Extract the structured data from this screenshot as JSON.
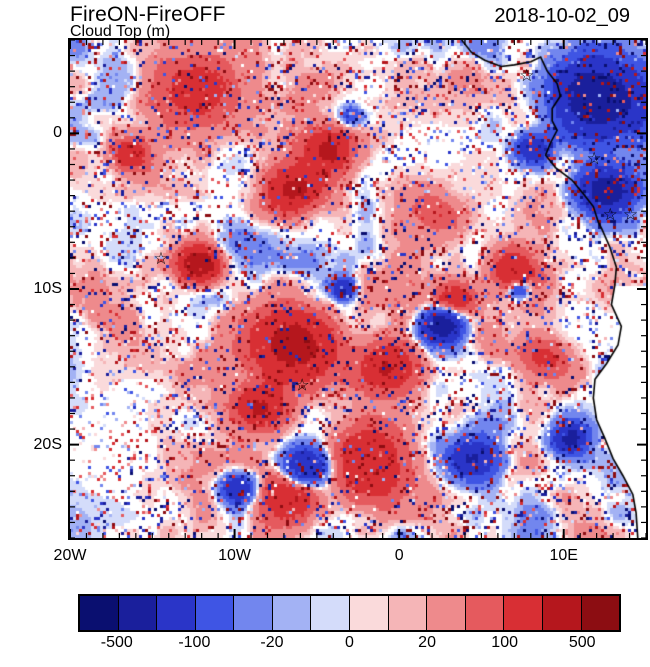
{
  "header": {
    "title": "FireON-FireOFF",
    "subtitle": "Cloud Top (m)",
    "datetime": "2018-10-02_09"
  },
  "chart_data": {
    "type": "heatmap",
    "title": "FireON-FireOFF",
    "subtitle": "Cloud Top (m)",
    "timestamp": "2018-10-02_09",
    "description": "Pixelated difference field (FireON minus FireOFF cloud top height, m) over the southeast Atlantic and southwestern Africa with coastline overlay",
    "x_axis": {
      "range_lon": [
        -20,
        15
      ],
      "minor_step_deg": 1,
      "ticks": [
        {
          "lon": -20,
          "label": "20W"
        },
        {
          "lon": -10,
          "label": "10W"
        },
        {
          "lon": 0,
          "label": "0"
        },
        {
          "lon": 10,
          "label": "10E"
        }
      ]
    },
    "y_axis": {
      "range_lat": [
        6,
        -26
      ],
      "minor_step_deg": 1,
      "ticks": [
        {
          "lat": 0,
          "label": "0"
        },
        {
          "lat": -10,
          "label": "10S"
        },
        {
          "lat": -20,
          "label": "20S"
        }
      ]
    },
    "colorbar": {
      "levels": [
        -500,
        -200,
        -100,
        -50,
        -20,
        -10,
        0,
        10,
        20,
        50,
        100,
        200,
        500
      ],
      "colors": [
        "#0a0f70",
        "#1a1f9c",
        "#2a35c8",
        "#3f55e4",
        "#7286ee",
        "#a3b2f4",
        "#d4dcfa",
        "#fadadb",
        "#f5b5b7",
        "#ee8a8c",
        "#e55a5e",
        "#d82f34",
        "#b5171d",
        "#8c0d12"
      ],
      "labeled": [
        {
          "index": 1,
          "text": "-500"
        },
        {
          "index": 3,
          "text": "-100"
        },
        {
          "index": 5,
          "text": "-20"
        },
        {
          "index": 7,
          "text": "0"
        },
        {
          "index": 9,
          "text": "20"
        },
        {
          "index": 11,
          "text": "100"
        },
        {
          "index": 13,
          "text": "500"
        }
      ]
    },
    "markers": {
      "symbol": "☆",
      "positions": [
        {
          "fx": 0.158,
          "fy": 0.438
        },
        {
          "fx": 0.403,
          "fy": 0.692
        },
        {
          "fx": 0.793,
          "fy": 0.07
        },
        {
          "fx": 0.91,
          "fy": 0.237
        },
        {
          "fx": 0.938,
          "fy": 0.349
        },
        {
          "fx": 0.973,
          "fy": 0.349
        }
      ]
    },
    "map": {
      "coastline_color": "#000000",
      "background": "#ffffff",
      "frame_color": "#000000"
    }
  }
}
